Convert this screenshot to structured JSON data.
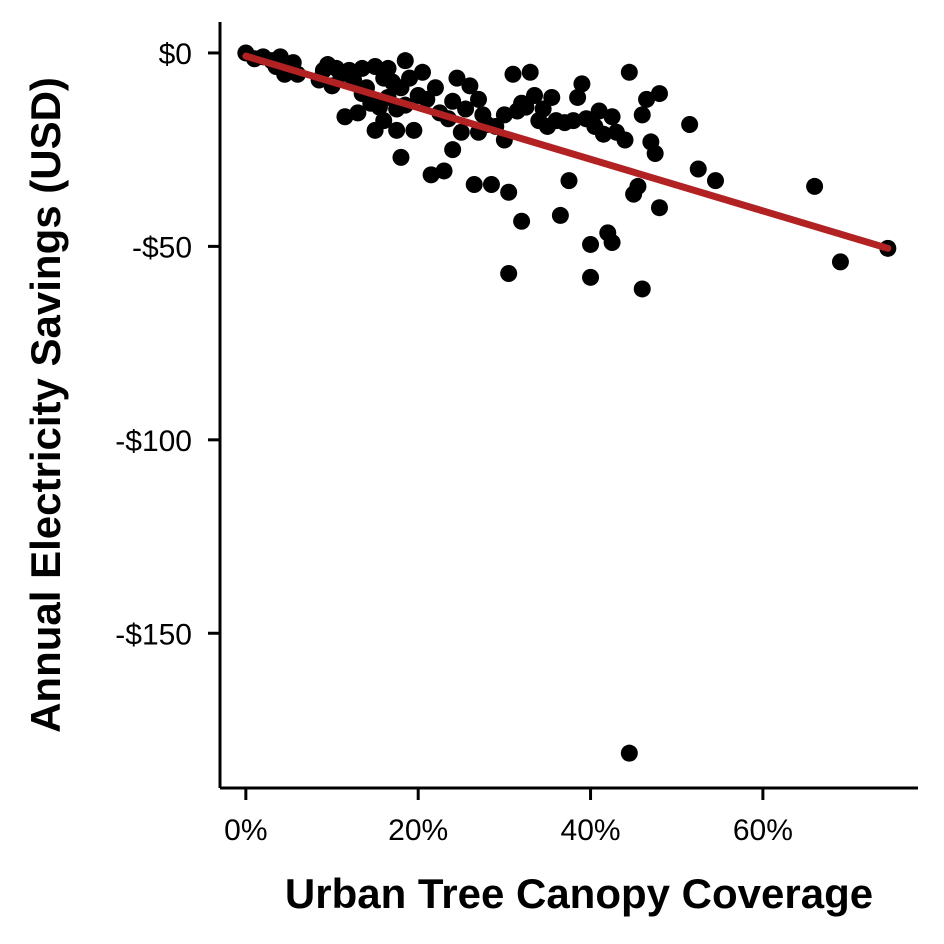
{
  "chart_data": {
    "type": "scatter",
    "title": "",
    "xlabel": "Urban Tree Canopy Coverage",
    "ylabel": "Annual Electricity Savings (USD)",
    "xlim": [
      -0.03,
      0.78
    ],
    "ylim": [
      -190,
      8
    ],
    "x_ticks": [
      {
        "value": 0.0,
        "label": "0%"
      },
      {
        "value": 0.2,
        "label": "20%"
      },
      {
        "value": 0.4,
        "label": "40%"
      },
      {
        "value": 0.6,
        "label": "60%"
      }
    ],
    "y_ticks": [
      {
        "value": 0,
        "label": "$0"
      },
      {
        "value": -50,
        "label": "-$50"
      },
      {
        "value": -100,
        "label": "-$100"
      },
      {
        "value": -150,
        "label": "-$150"
      }
    ],
    "grid": false,
    "legend": "none",
    "point_color": "#000000",
    "fit_color": "#b22222",
    "fit_line": {
      "x": [
        0.0,
        0.745
      ],
      "y": [
        -0.8,
        -50.5
      ]
    },
    "points": [
      [
        0.0,
        0.0
      ],
      [
        0.01,
        -1.5
      ],
      [
        0.02,
        -1.0
      ],
      [
        0.03,
        -2.0
      ],
      [
        0.035,
        -3.5
      ],
      [
        0.04,
        -1.0
      ],
      [
        0.045,
        -5.5
      ],
      [
        0.05,
        -3.0
      ],
      [
        0.055,
        -2.5
      ],
      [
        0.06,
        -5.5
      ],
      [
        0.085,
        -7.0
      ],
      [
        0.09,
        -4.5
      ],
      [
        0.095,
        -3.0
      ],
      [
        0.1,
        -8.5
      ],
      [
        0.105,
        -4.0
      ],
      [
        0.11,
        -5.5
      ],
      [
        0.115,
        -16.5
      ],
      [
        0.12,
        -4.5
      ],
      [
        0.125,
        -7.0
      ],
      [
        0.13,
        -15.5
      ],
      [
        0.135,
        -4.0
      ],
      [
        0.135,
        -10.5
      ],
      [
        0.14,
        -9.0
      ],
      [
        0.145,
        -13.0
      ],
      [
        0.15,
        -3.5
      ],
      [
        0.15,
        -20.0
      ],
      [
        0.155,
        -14.0
      ],
      [
        0.16,
        -6.5
      ],
      [
        0.16,
        -17.5
      ],
      [
        0.165,
        -4.0
      ],
      [
        0.165,
        -11.5
      ],
      [
        0.17,
        -7.5
      ],
      [
        0.175,
        -14.5
      ],
      [
        0.175,
        -20.0
      ],
      [
        0.18,
        -9.0
      ],
      [
        0.18,
        -27.0
      ],
      [
        0.185,
        -2.0
      ],
      [
        0.185,
        -13.5
      ],
      [
        0.19,
        -6.5
      ],
      [
        0.195,
        -20.0
      ],
      [
        0.2,
        -11.0
      ],
      [
        0.205,
        -5.0
      ],
      [
        0.21,
        -12.0
      ],
      [
        0.215,
        -31.5
      ],
      [
        0.22,
        -9.0
      ],
      [
        0.225,
        -15.5
      ],
      [
        0.23,
        -30.5
      ],
      [
        0.235,
        -17.0
      ],
      [
        0.24,
        -25.0
      ],
      [
        0.24,
        -12.5
      ],
      [
        0.245,
        -6.5
      ],
      [
        0.25,
        -20.5
      ],
      [
        0.255,
        -14.5
      ],
      [
        0.26,
        -8.5
      ],
      [
        0.265,
        -34.0
      ],
      [
        0.27,
        -12.0
      ],
      [
        0.27,
        -20.5
      ],
      [
        0.275,
        -16.0
      ],
      [
        0.28,
        -18.5
      ],
      [
        0.285,
        -34.0
      ],
      [
        0.29,
        -19.0
      ],
      [
        0.3,
        -16.0
      ],
      [
        0.3,
        -22.5
      ],
      [
        0.305,
        -36.0
      ],
      [
        0.305,
        -57.0
      ],
      [
        0.31,
        -5.5
      ],
      [
        0.315,
        -15.0
      ],
      [
        0.32,
        -43.5
      ],
      [
        0.32,
        -13.0
      ],
      [
        0.325,
        -14.0
      ],
      [
        0.33,
        -5.0
      ],
      [
        0.335,
        -11.0
      ],
      [
        0.34,
        -17.5
      ],
      [
        0.345,
        -14.5
      ],
      [
        0.35,
        -19.0
      ],
      [
        0.355,
        -11.5
      ],
      [
        0.36,
        -17.5
      ],
      [
        0.365,
        -42.0
      ],
      [
        0.37,
        -18.0
      ],
      [
        0.375,
        -33.0
      ],
      [
        0.38,
        -17.5
      ],
      [
        0.385,
        -11.5
      ],
      [
        0.39,
        -8.0
      ],
      [
        0.395,
        -17.0
      ],
      [
        0.4,
        -58.0
      ],
      [
        0.4,
        -49.5
      ],
      [
        0.405,
        -19.0
      ],
      [
        0.41,
        -15.0
      ],
      [
        0.415,
        -21.0
      ],
      [
        0.42,
        -46.5
      ],
      [
        0.425,
        -16.5
      ],
      [
        0.425,
        -49.0
      ],
      [
        0.43,
        -20.5
      ],
      [
        0.44,
        -22.5
      ],
      [
        0.445,
        -5.0
      ],
      [
        0.445,
        -181.0
      ],
      [
        0.45,
        -36.5
      ],
      [
        0.455,
        -34.5
      ],
      [
        0.46,
        -61.0
      ],
      [
        0.46,
        -16.0
      ],
      [
        0.465,
        -12.0
      ],
      [
        0.47,
        -23.0
      ],
      [
        0.475,
        -26.0
      ],
      [
        0.48,
        -10.5
      ],
      [
        0.48,
        -40.0
      ],
      [
        0.515,
        -18.5
      ],
      [
        0.525,
        -30.0
      ],
      [
        0.545,
        -33.0
      ],
      [
        0.66,
        -34.5
      ],
      [
        0.69,
        -54.0
      ],
      [
        0.745,
        -50.5
      ]
    ]
  }
}
